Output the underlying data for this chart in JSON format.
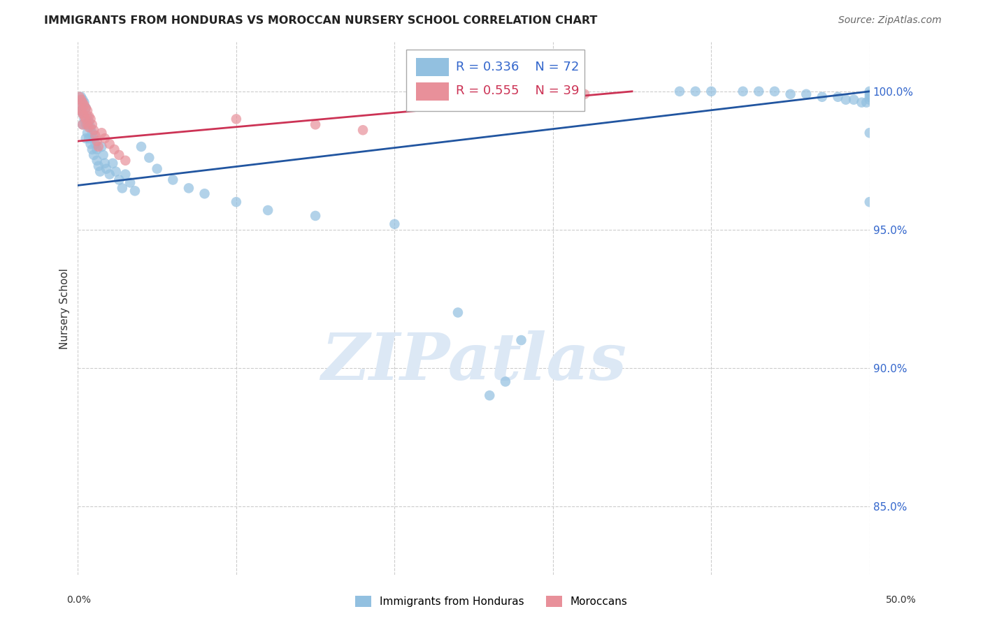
{
  "title": "IMMIGRANTS FROM HONDURAS VS MOROCCAN NURSERY SCHOOL CORRELATION CHART",
  "source": "Source: ZipAtlas.com",
  "ylabel": "Nursery School",
  "ytick_values": [
    0.85,
    0.9,
    0.95,
    1.0
  ],
  "ytick_labels": [
    "85.0%",
    "90.0%",
    "95.0%",
    "100.0%"
  ],
  "xlim": [
    0.0,
    0.5
  ],
  "ylim": [
    0.825,
    1.018
  ],
  "legend_blue_r": "0.336",
  "legend_blue_n": "72",
  "legend_pink_r": "0.555",
  "legend_pink_n": "39",
  "blue_color": "#92c0e0",
  "pink_color": "#e8909a",
  "blue_line_color": "#2155a0",
  "pink_line_color": "#cc3355",
  "watermark": "ZIPatlas",
  "watermark_color": "#dce8f5",
  "background_color": "#ffffff",
  "grid_color": "#cccccc",
  "blue_scatter_x": [
    0.001,
    0.002,
    0.002,
    0.003,
    0.003,
    0.003,
    0.004,
    0.004,
    0.005,
    0.005,
    0.005,
    0.006,
    0.006,
    0.007,
    0.007,
    0.008,
    0.008,
    0.009,
    0.009,
    0.01,
    0.01,
    0.011,
    0.012,
    0.012,
    0.013,
    0.014,
    0.015,
    0.016,
    0.017,
    0.018,
    0.02,
    0.022,
    0.024,
    0.026,
    0.028,
    0.03,
    0.033,
    0.036,
    0.04,
    0.045,
    0.05,
    0.06,
    0.07,
    0.08,
    0.1,
    0.12,
    0.15,
    0.2,
    0.24,
    0.26,
    0.27,
    0.28,
    0.38,
    0.39,
    0.4,
    0.42,
    0.43,
    0.44,
    0.45,
    0.46,
    0.47,
    0.48,
    0.485,
    0.49,
    0.495,
    0.498,
    0.5,
    0.5,
    0.5,
    0.5,
    0.5,
    0.5
  ],
  "blue_scatter_y": [
    0.995,
    0.998,
    0.993,
    0.997,
    0.992,
    0.988,
    0.996,
    0.99,
    0.994,
    0.988,
    0.983,
    0.991,
    0.985,
    0.989,
    0.983,
    0.987,
    0.981,
    0.985,
    0.979,
    0.983,
    0.977,
    0.981,
    0.979,
    0.975,
    0.973,
    0.971,
    0.98,
    0.977,
    0.974,
    0.972,
    0.97,
    0.974,
    0.971,
    0.968,
    0.965,
    0.97,
    0.967,
    0.964,
    0.98,
    0.976,
    0.972,
    0.968,
    0.965,
    0.963,
    0.96,
    0.957,
    0.955,
    0.952,
    0.92,
    0.89,
    0.895,
    0.91,
    1.0,
    1.0,
    1.0,
    1.0,
    1.0,
    1.0,
    0.999,
    0.999,
    0.998,
    0.998,
    0.997,
    0.997,
    0.996,
    0.996,
    0.997,
    0.998,
    0.999,
    1.0,
    0.985,
    0.96
  ],
  "pink_scatter_x": [
    0.001,
    0.001,
    0.002,
    0.002,
    0.003,
    0.003,
    0.003,
    0.004,
    0.004,
    0.005,
    0.005,
    0.006,
    0.006,
    0.007,
    0.007,
    0.008,
    0.009,
    0.01,
    0.011,
    0.012,
    0.013,
    0.015,
    0.017,
    0.02,
    0.023,
    0.026,
    0.03,
    0.1,
    0.15,
    0.18,
    0.24,
    0.25,
    0.26,
    0.27,
    0.28,
    0.29,
    0.3,
    0.31,
    0.32
  ],
  "pink_scatter_y": [
    0.998,
    0.994,
    0.997,
    0.993,
    0.996,
    0.992,
    0.988,
    0.995,
    0.991,
    0.994,
    0.99,
    0.993,
    0.988,
    0.991,
    0.987,
    0.99,
    0.988,
    0.986,
    0.984,
    0.982,
    0.98,
    0.985,
    0.983,
    0.981,
    0.979,
    0.977,
    0.975,
    0.99,
    0.988,
    0.986,
    1.0,
    1.0,
    1.0,
    1.0,
    1.0,
    1.0,
    1.0,
    0.999,
    0.999
  ],
  "blue_line_x": [
    0.0,
    0.5
  ],
  "blue_line_y": [
    0.966,
    1.0
  ],
  "pink_line_x": [
    0.0,
    0.35
  ],
  "pink_line_y": [
    0.982,
    1.0
  ]
}
